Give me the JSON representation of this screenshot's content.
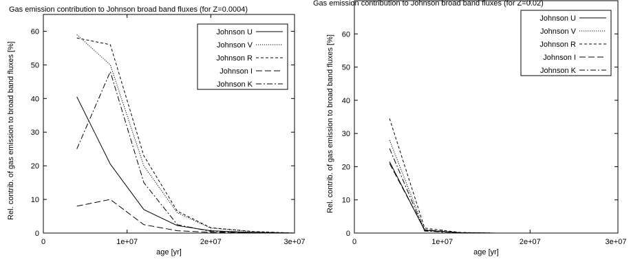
{
  "chart_data": [
    {
      "type": "line",
      "title": "Gas emission contribution to Johnson broad band fluxes (for Z=0.0004)",
      "xlabel": "age [yr]",
      "ylabel": "Rel. contrib. of gas emission to broad band fluxes [%]",
      "xlim": [
        0,
        30000000
      ],
      "ylim": [
        0,
        65
      ],
      "xticks": [
        0,
        10000000,
        20000000,
        30000000
      ],
      "xtick_labels": [
        "0",
        "1e+07",
        "2e+07",
        "3e+07"
      ],
      "yticks": [
        0,
        10,
        20,
        30,
        40,
        50,
        60
      ],
      "ytick_labels": [
        "0",
        "10",
        "20",
        "30",
        "40",
        "50",
        "60"
      ],
      "legend_position": "top-right",
      "grid": false,
      "series": [
        {
          "name": "Johnson U",
          "dash": "solid",
          "x": [
            4000000,
            8000000,
            12000000,
            16000000,
            20000000,
            25000000,
            30000000
          ],
          "y": [
            40.5,
            20.5,
            7.0,
            2.2,
            0.7,
            0.2,
            0.0
          ]
        },
        {
          "name": "Johnson V",
          "dash": "dotted",
          "x": [
            4000000,
            8000000,
            12000000,
            16000000,
            20000000,
            25000000,
            30000000
          ],
          "y": [
            59.0,
            50.0,
            20.0,
            6.0,
            1.5,
            0.4,
            0.0
          ]
        },
        {
          "name": "Johnson R",
          "dash": "short-dash",
          "x": [
            4000000,
            8000000,
            12000000,
            16000000,
            20000000,
            25000000,
            30000000
          ],
          "y": [
            58.0,
            56.0,
            23.0,
            6.5,
            1.6,
            0.5,
            0.0
          ]
        },
        {
          "name": "Johnson I",
          "dash": "long-dash",
          "x": [
            4000000,
            8000000,
            12000000,
            16000000,
            20000000,
            25000000,
            30000000
          ],
          "y": [
            8.0,
            10.0,
            2.5,
            0.7,
            0.2,
            0.1,
            0.0
          ]
        },
        {
          "name": "Johnson K",
          "dash": "dash-dot",
          "x": [
            4000000,
            8000000,
            12000000,
            16000000,
            20000000,
            25000000,
            30000000
          ],
          "y": [
            25.0,
            48.0,
            15.0,
            2.5,
            0.5,
            0.1,
            0.0
          ]
        }
      ]
    },
    {
      "type": "line",
      "title": "Gas emission contribution to Johnson broad band fluxes (for Z=0.02)",
      "xlabel": "age [yr]",
      "ylabel": "Rel. contrib. of gas emission to broad band fluxes [%]",
      "xlim": [
        0,
        30000000
      ],
      "ylim": [
        0,
        70
      ],
      "xticks": [
        0,
        10000000,
        20000000,
        30000000
      ],
      "xtick_labels": [
        "0",
        "1e+07",
        "2e+07",
        "3e+07"
      ],
      "yticks": [
        0,
        10,
        20,
        30,
        40,
        50,
        60
      ],
      "ytick_labels": [
        "0",
        "10",
        "20",
        "30",
        "40",
        "50",
        "60"
      ],
      "legend_position": "top-right",
      "grid": false,
      "series": [
        {
          "name": "Johnson U",
          "dash": "solid",
          "x": [
            4000000,
            8000000,
            12000000,
            16000000
          ],
          "y": [
            21.5,
            0.8,
            0.1,
            0.0
          ]
        },
        {
          "name": "Johnson V",
          "dash": "dotted",
          "x": [
            4000000,
            8000000,
            12000000,
            16000000
          ],
          "y": [
            28.0,
            1.0,
            0.1,
            0.0
          ]
        },
        {
          "name": "Johnson R",
          "dash": "short-dash",
          "x": [
            4000000,
            8000000,
            12000000,
            16000000
          ],
          "y": [
            34.5,
            1.5,
            0.2,
            0.0
          ]
        },
        {
          "name": "Johnson I",
          "dash": "long-dash",
          "x": [
            4000000,
            8000000,
            12000000,
            16000000
          ],
          "y": [
            21.0,
            1.0,
            0.1,
            0.0
          ]
        },
        {
          "name": "Johnson K",
          "dash": "dash-dot",
          "x": [
            4000000,
            8000000,
            12000000,
            16000000
          ],
          "y": [
            25.5,
            0.6,
            0.1,
            0.0
          ]
        }
      ]
    }
  ]
}
